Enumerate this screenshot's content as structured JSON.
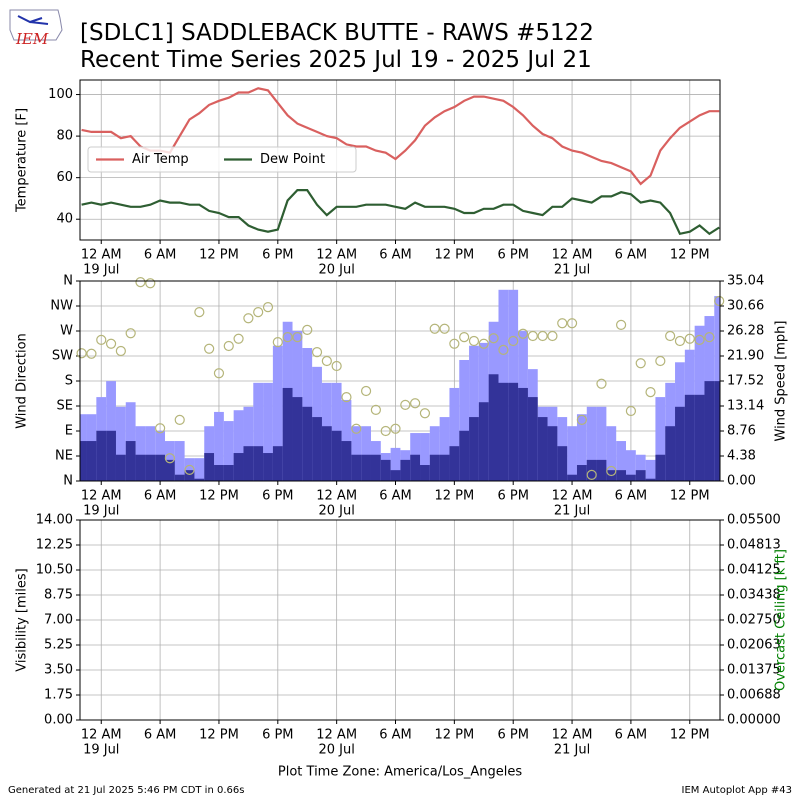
{
  "header": {
    "logo": "IEM",
    "title": "[SDLC1] SADDLEBACK BUTTE - RAWS #5122",
    "subtitle": "Recent Time Series 2025 Jul 19 - 2025 Jul 21"
  },
  "chart_data": [
    {
      "type": "line",
      "ylabel": "Temperature [F]",
      "grid": true,
      "legend": "center left",
      "x": [
        "2025-07-18T22:00",
        "2025-07-18T23:00",
        "2025-07-19T00:00",
        "2025-07-19T01:00",
        "2025-07-19T02:00",
        "2025-07-19T03:00",
        "2025-07-19T04:00",
        "2025-07-19T05:00",
        "2025-07-19T06:00",
        "2025-07-19T07:00",
        "2025-07-19T08:00",
        "2025-07-19T09:00",
        "2025-07-19T10:00",
        "2025-07-19T11:00",
        "2025-07-19T12:00",
        "2025-07-19T13:00",
        "2025-07-19T14:00",
        "2025-07-19T15:00",
        "2025-07-19T16:00",
        "2025-07-19T17:00",
        "2025-07-19T18:00",
        "2025-07-19T19:00",
        "2025-07-19T20:00",
        "2025-07-19T21:00",
        "2025-07-19T22:00",
        "2025-07-19T23:00",
        "2025-07-20T00:00",
        "2025-07-20T01:00",
        "2025-07-20T02:00",
        "2025-07-20T03:00",
        "2025-07-20T04:00",
        "2025-07-20T05:00",
        "2025-07-20T06:00",
        "2025-07-20T07:00",
        "2025-07-20T08:00",
        "2025-07-20T09:00",
        "2025-07-20T10:00",
        "2025-07-20T11:00",
        "2025-07-20T12:00",
        "2025-07-20T13:00",
        "2025-07-20T14:00",
        "2025-07-20T15:00",
        "2025-07-20T16:00",
        "2025-07-20T17:00",
        "2025-07-20T18:00",
        "2025-07-20T19:00",
        "2025-07-20T20:00",
        "2025-07-20T21:00",
        "2025-07-20T22:00",
        "2025-07-20T23:00",
        "2025-07-21T00:00",
        "2025-07-21T01:00",
        "2025-07-21T02:00",
        "2025-07-21T03:00",
        "2025-07-21T04:00",
        "2025-07-21T05:00",
        "2025-07-21T06:00",
        "2025-07-21T07:00",
        "2025-07-21T08:00",
        "2025-07-21T09:00",
        "2025-07-21T10:00",
        "2025-07-21T11:00",
        "2025-07-21T12:00",
        "2025-07-21T13:00",
        "2025-07-21T14:00",
        "2025-07-21T15:00"
      ],
      "xlim": [
        "2025-07-18T21:50",
        "2025-07-21T15:05"
      ],
      "xticks": [
        {
          "value": "2025-07-19T00:00",
          "label": "12 AM"
        },
        {
          "value": "2025-07-19T06:00",
          "label": "6 AM"
        },
        {
          "value": "2025-07-19T12:00",
          "label": "12 PM"
        },
        {
          "value": "2025-07-19T18:00",
          "label": "6 PM"
        },
        {
          "value": "2025-07-20T00:00",
          "label": "12 AM"
        },
        {
          "value": "2025-07-20T06:00",
          "label": "6 AM"
        },
        {
          "value": "2025-07-20T12:00",
          "label": "12 PM"
        },
        {
          "value": "2025-07-20T18:00",
          "label": "6 PM"
        },
        {
          "value": "2025-07-21T00:00",
          "label": "12 AM"
        },
        {
          "value": "2025-07-21T06:00",
          "label": "6 AM"
        },
        {
          "value": "2025-07-21T12:00",
          "label": "12 PM"
        }
      ],
      "xtick_dates": [
        {
          "value": "2025-07-19T00:00",
          "label": "19 Jul"
        },
        {
          "value": "2025-07-20T00:00",
          "label": "20 Jul"
        },
        {
          "value": "2025-07-21T00:00",
          "label": "21 Jul"
        }
      ],
      "ylim": [
        30,
        107
      ],
      "yticks": [
        40,
        60,
        80,
        100
      ],
      "series": [
        {
          "name": "Air Temp",
          "color": "#d9605f",
          "values": [
            83,
            82,
            82,
            82,
            79,
            80,
            75,
            73,
            73,
            72,
            80,
            88,
            91,
            95,
            97,
            98.5,
            101,
            101,
            103,
            102,
            96,
            90,
            86,
            84,
            82,
            80,
            79,
            76,
            75,
            75,
            73,
            72,
            69,
            73,
            78,
            85,
            89,
            92,
            94,
            97,
            99,
            99,
            98,
            97,
            94,
            90,
            85,
            81,
            79,
            75,
            73,
            72,
            70,
            68,
            67,
            65,
            63,
            57,
            61,
            73,
            79,
            84,
            87,
            90,
            92,
            92
          ]
        },
        {
          "name": "Dew Point",
          "color": "#2e5e32",
          "values": [
            47,
            48,
            47,
            48,
            47,
            46,
            46,
            47,
            49,
            48,
            48,
            47,
            47,
            44,
            43,
            41,
            41,
            37,
            35,
            34,
            35,
            49,
            54,
            54,
            47,
            42,
            46,
            46,
            46,
            47,
            47,
            47,
            46,
            45,
            48,
            46,
            46,
            46,
            45,
            43,
            43,
            45,
            45,
            47,
            47,
            44,
            43,
            42,
            46,
            46,
            50,
            49,
            48,
            51,
            51,
            53,
            52,
            48,
            49,
            48,
            43,
            33,
            34,
            37,
            33,
            36
          ]
        }
      ]
    },
    {
      "type": "bar",
      "ylabel": "Wind Direction",
      "y2label": "Wind Speed [mph]",
      "grid": true,
      "x": [
        "2025-07-18T22:00",
        "2025-07-18T23:00",
        "2025-07-19T00:00",
        "2025-07-19T01:00",
        "2025-07-19T02:00",
        "2025-07-19T03:00",
        "2025-07-19T04:00",
        "2025-07-19T05:00",
        "2025-07-19T06:00",
        "2025-07-19T07:00",
        "2025-07-19T08:00",
        "2025-07-19T09:00",
        "2025-07-19T10:00",
        "2025-07-19T11:00",
        "2025-07-19T12:00",
        "2025-07-19T13:00",
        "2025-07-19T14:00",
        "2025-07-19T15:00",
        "2025-07-19T16:00",
        "2025-07-19T17:00",
        "2025-07-19T18:00",
        "2025-07-19T19:00",
        "2025-07-19T20:00",
        "2025-07-19T21:00",
        "2025-07-19T22:00",
        "2025-07-19T23:00",
        "2025-07-20T00:00",
        "2025-07-20T01:00",
        "2025-07-20T02:00",
        "2025-07-20T03:00",
        "2025-07-20T04:00",
        "2025-07-20T05:00",
        "2025-07-20T06:00",
        "2025-07-20T07:00",
        "2025-07-20T08:00",
        "2025-07-20T09:00",
        "2025-07-20T10:00",
        "2025-07-20T11:00",
        "2025-07-20T12:00",
        "2025-07-20T13:00",
        "2025-07-20T14:00",
        "2025-07-20T15:00",
        "2025-07-20T16:00",
        "2025-07-20T17:00",
        "2025-07-20T18:00",
        "2025-07-20T19:00",
        "2025-07-20T20:00",
        "2025-07-20T21:00",
        "2025-07-20T22:00",
        "2025-07-20T23:00",
        "2025-07-21T00:00",
        "2025-07-21T01:00",
        "2025-07-21T02:00",
        "2025-07-21T03:00",
        "2025-07-21T04:00",
        "2025-07-21T05:00",
        "2025-07-21T06:00",
        "2025-07-21T07:00",
        "2025-07-21T08:00",
        "2025-07-21T09:00",
        "2025-07-21T10:00",
        "2025-07-21T11:00",
        "2025-07-21T12:00",
        "2025-07-21T13:00",
        "2025-07-21T14:00",
        "2025-07-21T15:00"
      ],
      "xlim": [
        "2025-07-18T21:50",
        "2025-07-21T15:05"
      ],
      "xticks": [
        {
          "value": "2025-07-19T00:00",
          "label": "12 AM"
        },
        {
          "value": "2025-07-19T06:00",
          "label": "6 AM"
        },
        {
          "value": "2025-07-19T12:00",
          "label": "12 PM"
        },
        {
          "value": "2025-07-19T18:00",
          "label": "6 PM"
        },
        {
          "value": "2025-07-20T00:00",
          "label": "12 AM"
        },
        {
          "value": "2025-07-20T06:00",
          "label": "6 AM"
        },
        {
          "value": "2025-07-20T12:00",
          "label": "12 PM"
        },
        {
          "value": "2025-07-20T18:00",
          "label": "6 PM"
        },
        {
          "value": "2025-07-21T00:00",
          "label": "12 AM"
        },
        {
          "value": "2025-07-21T06:00",
          "label": "6 AM"
        },
        {
          "value": "2025-07-21T12:00",
          "label": "12 PM"
        }
      ],
      "xtick_dates": [
        {
          "value": "2025-07-19T00:00",
          "label": "19 Jul"
        },
        {
          "value": "2025-07-20T00:00",
          "label": "20 Jul"
        },
        {
          "value": "2025-07-21T00:00",
          "label": "21 Jul"
        }
      ],
      "ylim": [
        0,
        360
      ],
      "yticks": [
        {
          "value": 0,
          "label": "N"
        },
        {
          "value": 45,
          "label": "NE"
        },
        {
          "value": 90,
          "label": "E"
        },
        {
          "value": 135,
          "label": "SE"
        },
        {
          "value": 180,
          "label": "S"
        },
        {
          "value": 225,
          "label": "SW"
        },
        {
          "value": 270,
          "label": "W"
        },
        {
          "value": 315,
          "label": "NW"
        },
        {
          "value": 360,
          "label": "N"
        }
      ],
      "y2lim": [
        0,
        35.04
      ],
      "y2ticks": [
        {
          "value": 0,
          "label": "0.00"
        },
        4.38,
        8.76,
        13.14,
        17.52,
        {
          "value": 21.9,
          "label": "21.90"
        },
        26.28,
        30.66,
        35.04
      ],
      "series": [
        {
          "color": "#9999ff",
          "axis": "y2",
          "values": [
            11.7,
            11.7,
            14.7,
            17.5,
            13.0,
            13.8,
            9.6,
            9.6,
            8.8,
            7.0,
            7.0,
            4.0,
            4.0,
            9.6,
            12.1,
            10.5,
            12.4,
            13.0,
            17.2,
            17.2,
            23.7,
            27.9,
            26.3,
            23.3,
            20.0,
            17.2,
            17.2,
            14.2,
            9.6,
            9.6,
            7.0,
            4.9,
            5.8,
            5.4,
            8.4,
            8.4,
            9.6,
            11.2,
            16.3,
            21.2,
            23.7,
            24.2,
            27.9,
            33.5,
            33.5,
            26.3,
            19.6,
            13.0,
            13.0,
            11.2,
            9.6,
            11.7,
            13.0,
            13.0,
            9.6,
            7.0,
            5.4,
            4.6,
            3.7,
            14.7,
            17.2,
            20.8,
            23.0,
            27.2,
            28.9,
            32.4
          ]
        },
        {
          "color": "#333399",
          "axis": "y2",
          "values": [
            7.0,
            7.0,
            8.8,
            8.8,
            4.6,
            7.0,
            4.6,
            4.6,
            4.6,
            3.7,
            1.1,
            1.9,
            0.4,
            4.9,
            2.8,
            2.8,
            4.9,
            6.1,
            6.1,
            4.9,
            6.1,
            16.3,
            14.7,
            13.0,
            11.2,
            9.6,
            8.8,
            7.0,
            4.6,
            4.6,
            4.6,
            3.7,
            1.9,
            3.7,
            4.6,
            2.8,
            4.6,
            4.6,
            6.1,
            8.8,
            11.2,
            13.8,
            18.7,
            17.2,
            17.2,
            16.3,
            14.7,
            11.2,
            9.6,
            6.1,
            1.1,
            2.8,
            3.7,
            3.7,
            1.9,
            1.9,
            1.1,
            1.9,
            0.4,
            4.6,
            9.6,
            13.0,
            15.1,
            15.1,
            17.5,
            17.5
          ]
        },
        {
          "type": "scatter",
          "color": "#b5b57a",
          "values": [
            230,
            229,
            254,
            247,
            234,
            266,
            358,
            356,
            95,
            41,
            110,
            20,
            304,
            238,
            194,
            243,
            256,
            293,
            304,
            313,
            250,
            259,
            259,
            272,
            232,
            216,
            207,
            151,
            94,
            162,
            128,
            90,
            94,
            137,
            140,
            122,
            274,
            274,
            247,
            259,
            252,
            247,
            257,
            236,
            252,
            265,
            261,
            261,
            261,
            284,
            284,
            110,
            11,
            175,
            18,
            281,
            126,
            212,
            160,
            216,
            261,
            252,
            256,
            254,
            259,
            324
          ]
        }
      ]
    },
    {
      "type": "line",
      "ylabel": "Visibility [miles]",
      "y2label": "Overcast Ceiling [k ft]",
      "y2label_color": "#008000",
      "xlabel": "Plot Time Zone: America/Los_Angeles",
      "grid": true,
      "xlim": [
        "2025-07-18T21:50",
        "2025-07-21T15:05"
      ],
      "xticks": [
        {
          "value": "2025-07-19T00:00",
          "label": "12 AM"
        },
        {
          "value": "2025-07-19T06:00",
          "label": "6 AM"
        },
        {
          "value": "2025-07-19T12:00",
          "label": "12 PM"
        },
        {
          "value": "2025-07-19T18:00",
          "label": "6 PM"
        },
        {
          "value": "2025-07-20T00:00",
          "label": "12 AM"
        },
        {
          "value": "2025-07-20T06:00",
          "label": "6 AM"
        },
        {
          "value": "2025-07-20T12:00",
          "label": "12 PM"
        },
        {
          "value": "2025-07-20T18:00",
          "label": "6 PM"
        },
        {
          "value": "2025-07-21T00:00",
          "label": "12 AM"
        },
        {
          "value": "2025-07-21T06:00",
          "label": "6 AM"
        },
        {
          "value": "2025-07-21T12:00",
          "label": "12 PM"
        }
      ],
      "xtick_dates": [
        {
          "value": "2025-07-19T00:00",
          "label": "19 Jul"
        },
        {
          "value": "2025-07-20T00:00",
          "label": "20 Jul"
        },
        {
          "value": "2025-07-21T00:00",
          "label": "21 Jul"
        }
      ],
      "ylim": [
        0,
        14
      ],
      "yticks": [
        {
          "value": 0,
          "label": "0.00"
        },
        1.75,
        {
          "value": 3.5,
          "label": "3.50"
        },
        5.25,
        {
          "value": 7,
          "label": "7.00"
        },
        8.75,
        {
          "value": 10.5,
          "label": "10.50"
        },
        12.25,
        {
          "value": 14,
          "label": "14.00"
        }
      ],
      "y2lim": [
        0,
        0.055
      ],
      "y2ticks": [
        {
          "value": 0,
          "label": "0.00000"
        },
        {
          "value": 0.006875,
          "label": "0.00688"
        },
        {
          "value": 0.01375,
          "label": "0.01375"
        },
        {
          "value": 0.020625,
          "label": "0.02063"
        },
        {
          "value": 0.0275,
          "label": "0.02750"
        },
        {
          "value": 0.034375,
          "label": "0.03438"
        },
        {
          "value": 0.04125,
          "label": "0.04125"
        },
        {
          "value": 0.048125,
          "label": "0.04813"
        },
        {
          "value": 0.055,
          "label": "0.05500"
        }
      ],
      "series": []
    }
  ],
  "footer": {
    "left": "Generated at 21 Jul 2025 5:46 PM CDT in 0.66s",
    "right": "IEM Autoplot App #43"
  }
}
